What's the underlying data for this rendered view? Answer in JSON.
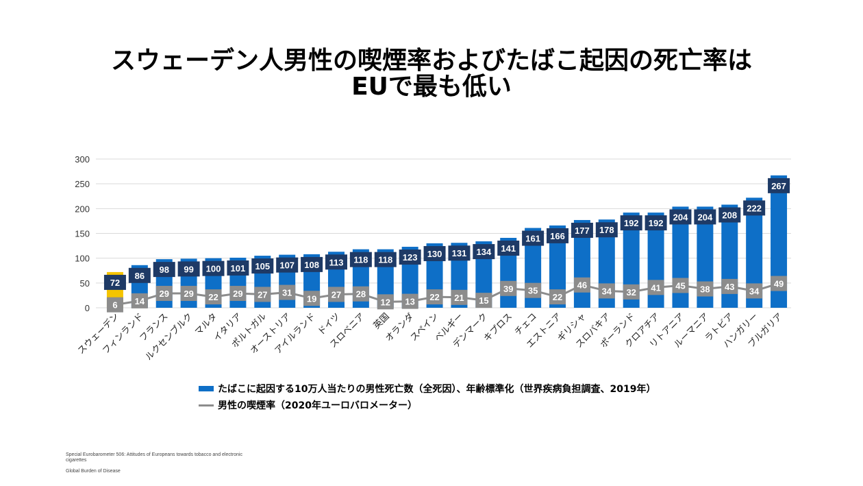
{
  "title": {
    "line1": "スウェーデン人男性の喫煙率およびたばこ起因の死亡率は",
    "line2": "EUで最も低い"
  },
  "legend": {
    "bar_label": "たばこに起因する10万人当たりの男性死亡数（全死因）、年齢標準化（世界疾病負担調査、2019年）",
    "line_label": "男性の喫煙率（2020年ユーロバロメーター）"
  },
  "sources": {
    "line1": "Special Eurobarometer 506: Attitudes of Europeans towards tobacco and electronic cigarettes",
    "line2": "Global Burden of Disease"
  },
  "colors": {
    "bar": "#0e6fc7",
    "bar_highlight": "#f5c400",
    "bar_label_bg": "#1e3a66",
    "line": "#8c8c8c"
  },
  "chart_data": {
    "type": "bar",
    "ylim": [
      0,
      300
    ],
    "yticks": [
      0,
      50,
      100,
      150,
      200,
      250,
      300
    ],
    "grid": true,
    "legend_position": "bottom",
    "highlight_category": "スウェーデン",
    "categories": [
      "スウェーデン",
      "フィンランド",
      "フランス",
      "ルクセンブルク",
      "マルタ",
      "イタリア",
      "ポルトガル",
      "オーストリア",
      "アイルランド",
      "ドイツ",
      "スロベニア",
      "英国",
      "オランダ",
      "スペイン",
      "ベルギー",
      "デンマーク",
      "キプロス",
      "チェコ",
      "エストニア",
      "ギリシャ",
      "スロバキア",
      "ポーランド",
      "クロアチア",
      "リトアニア",
      "ルーマニア",
      "ラトビア",
      "ハンガリー",
      "ブルガリア"
    ],
    "series": [
      {
        "name": "たばこに起因する10万人当たりの男性死亡数（全死因）、年齢標準化（世界疾病負担調査、2019年）",
        "type": "bar",
        "values": [
          72,
          86,
          98,
          99,
          100,
          101,
          105,
          107,
          108,
          113,
          118,
          118,
          123,
          130,
          131,
          134,
          141,
          161,
          166,
          177,
          178,
          192,
          192,
          204,
          204,
          208,
          222,
          267
        ]
      },
      {
        "name": "男性の喫煙率（2020年ユーロバロメーター）",
        "type": "line",
        "values": [
          6,
          14,
          29,
          29,
          22,
          29,
          27,
          31,
          19,
          27,
          28,
          12,
          13,
          22,
          21,
          15,
          39,
          35,
          22,
          46,
          34,
          32,
          41,
          45,
          38,
          43,
          34,
          49
        ]
      }
    ]
  }
}
